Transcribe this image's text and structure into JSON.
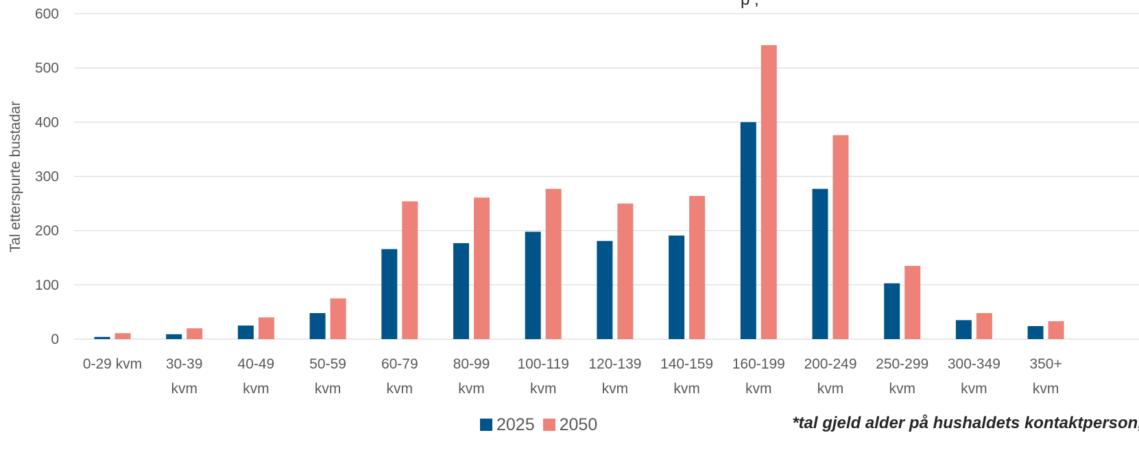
{
  "chart_data": {
    "type": "bar",
    "ylabel": "Tal etterspurte bustadar",
    "ylim": [
      0,
      600
    ],
    "yticks": [
      0,
      100,
      200,
      300,
      400,
      500,
      600
    ],
    "grid": true,
    "legend_position": "bottom",
    "categories": [
      [
        "0-29 kvm"
      ],
      [
        "30-39",
        "kvm"
      ],
      [
        "40-49",
        "kvm"
      ],
      [
        "50-59",
        "kvm"
      ],
      [
        "60-79",
        "kvm"
      ],
      [
        "80-99",
        "kvm"
      ],
      [
        "100-119",
        "kvm"
      ],
      [
        "120-139",
        "kvm"
      ],
      [
        "140-159",
        "kvm"
      ],
      [
        "160-199",
        "kvm"
      ],
      [
        "200-249",
        "kvm"
      ],
      [
        "250-299",
        "kvm"
      ],
      [
        "300-349",
        "kvm"
      ],
      [
        "350+",
        "kvm"
      ]
    ],
    "series": [
      {
        "name": "2025",
        "color": "#00548a",
        "values": [
          4,
          9,
          25,
          48,
          166,
          177,
          198,
          181,
          191,
          400,
          277,
          103,
          35,
          24
        ]
      },
      {
        "name": "2050",
        "color": "#ee8278",
        "values": [
          11,
          20,
          40,
          75,
          254,
          261,
          277,
          250,
          264,
          542,
          376,
          135,
          48,
          33
        ]
      }
    ],
    "footnote": "*tal gjeld alder på hushaldets kontaktperson,",
    "top_note": "p                                                  ,"
  }
}
